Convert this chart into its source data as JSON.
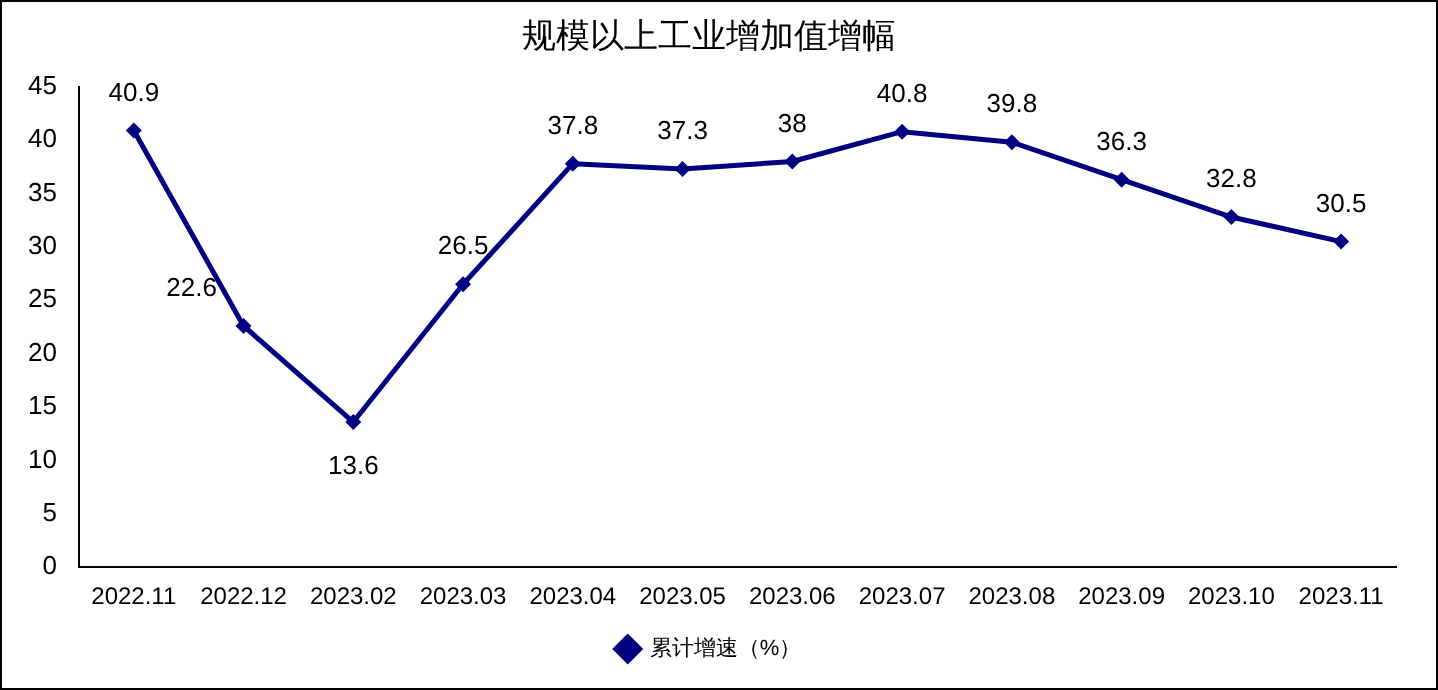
{
  "chart_data": {
    "type": "line",
    "title": "规模以上工业增加值增幅",
    "categories": [
      "2022.11",
      "2022.12",
      "2023.02",
      "2023.03",
      "2023.04",
      "2023.05",
      "2023.06",
      "2023.07",
      "2023.08",
      "2023.09",
      "2023.10",
      "2023.11"
    ],
    "series": [
      {
        "name": "累计增速（%）",
        "color": "#000080",
        "values": [
          40.9,
          22.6,
          13.6,
          26.5,
          37.8,
          37.3,
          38,
          40.8,
          39.8,
          36.3,
          32.8,
          30.5
        ]
      }
    ],
    "ylim": [
      0,
      45
    ],
    "yticks": [
      0,
      5,
      10,
      15,
      20,
      25,
      30,
      35,
      40,
      45
    ],
    "grid": false,
    "legend": "bottom",
    "marker": "diamond",
    "line_style": "solid",
    "data_labels": true
  }
}
